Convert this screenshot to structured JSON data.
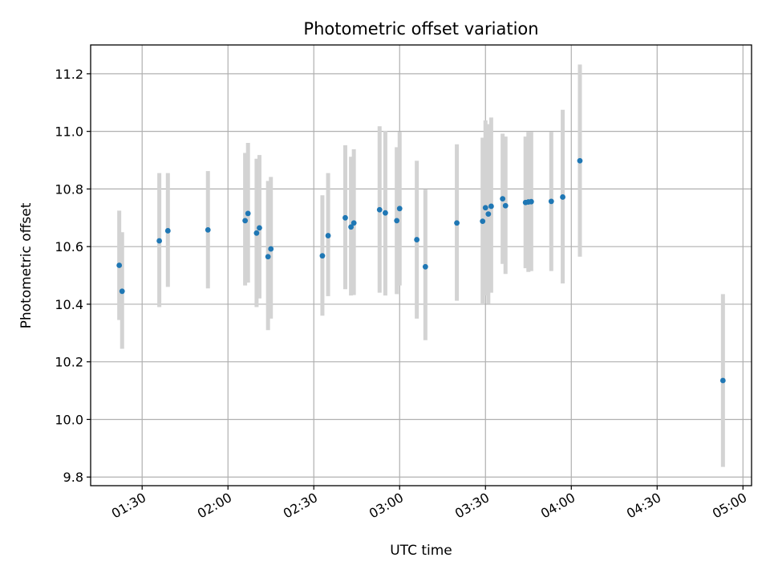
{
  "chart_data": {
    "type": "scatter",
    "title": "Photometric offset variation",
    "xlabel": "UTC time",
    "ylabel": "Photometric offset",
    "x_unit": "hh:mm UTC",
    "xlim": [
      "01:12",
      "05:03"
    ],
    "ylim": [
      9.77,
      11.3
    ],
    "grid": true,
    "x_ticks": [
      "01:30",
      "02:00",
      "02:30",
      "03:00",
      "03:30",
      "04:00",
      "04:30",
      "05:00"
    ],
    "y_ticks": [
      "9.8",
      "10.0",
      "10.2",
      "10.4",
      "10.6",
      "10.8",
      "11.0",
      "11.2"
    ],
    "series": [
      {
        "marker_color": "#1f77b4",
        "errorbar_color": "#d3d3d3",
        "points": [
          {
            "x": "01:22",
            "y": 10.535,
            "ylow": 10.345,
            "yhigh": 10.725
          },
          {
            "x": "01:23",
            "y": 10.445,
            "ylow": 10.245,
            "yhigh": 10.65
          },
          {
            "x": "01:36",
            "y": 10.62,
            "ylow": 10.39,
            "yhigh": 10.855
          },
          {
            "x": "01:39",
            "y": 10.655,
            "ylow": 10.46,
            "yhigh": 10.855
          },
          {
            "x": "01:53",
            "y": 10.658,
            "ylow": 10.455,
            "yhigh": 10.862
          },
          {
            "x": "02:06",
            "y": 10.69,
            "ylow": 10.465,
            "yhigh": 10.925
          },
          {
            "x": "02:07",
            "y": 10.715,
            "ylow": 10.475,
            "yhigh": 10.96
          },
          {
            "x": "02:10",
            "y": 10.647,
            "ylow": 10.39,
            "yhigh": 10.905
          },
          {
            "x": "02:11",
            "y": 10.665,
            "ylow": 10.42,
            "yhigh": 10.918
          },
          {
            "x": "02:14",
            "y": 10.565,
            "ylow": 10.31,
            "yhigh": 10.828
          },
          {
            "x": "02:15",
            "y": 10.592,
            "ylow": 10.35,
            "yhigh": 10.842
          },
          {
            "x": "02:33",
            "y": 10.568,
            "ylow": 10.36,
            "yhigh": 10.778
          },
          {
            "x": "02:35",
            "y": 10.638,
            "ylow": 10.428,
            "yhigh": 10.855
          },
          {
            "x": "02:41",
            "y": 10.7,
            "ylow": 10.452,
            "yhigh": 10.952
          },
          {
            "x": "02:43",
            "y": 10.668,
            "ylow": 10.43,
            "yhigh": 10.912
          },
          {
            "x": "02:44",
            "y": 10.682,
            "ylow": 10.432,
            "yhigh": 10.938
          },
          {
            "x": "02:53",
            "y": 10.728,
            "ylow": 10.44,
            "yhigh": 11.018
          },
          {
            "x": "02:55",
            "y": 10.717,
            "ylow": 10.43,
            "yhigh": 11.002
          },
          {
            "x": "02:59",
            "y": 10.69,
            "ylow": 10.435,
            "yhigh": 10.945
          },
          {
            "x": "03:00",
            "y": 10.732,
            "ylow": 10.465,
            "yhigh": 10.998
          },
          {
            "x": "03:06",
            "y": 10.624,
            "ylow": 10.35,
            "yhigh": 10.898
          },
          {
            "x": "03:09",
            "y": 10.53,
            "ylow": 10.275,
            "yhigh": 10.798
          },
          {
            "x": "03:20",
            "y": 10.682,
            "ylow": 10.412,
            "yhigh": 10.955
          },
          {
            "x": "03:29",
            "y": 10.688,
            "ylow": 10.4,
            "yhigh": 10.978
          },
          {
            "x": "03:30",
            "y": 10.735,
            "ylow": 10.43,
            "yhigh": 11.038
          },
          {
            "x": "03:31",
            "y": 10.713,
            "ylow": 10.402,
            "yhigh": 11.025
          },
          {
            "x": "03:32",
            "y": 10.74,
            "ylow": 10.44,
            "yhigh": 11.048
          },
          {
            "x": "03:36",
            "y": 10.766,
            "ylow": 10.54,
            "yhigh": 10.992
          },
          {
            "x": "03:37",
            "y": 10.742,
            "ylow": 10.505,
            "yhigh": 10.982
          },
          {
            "x": "03:44",
            "y": 10.753,
            "ylow": 10.525,
            "yhigh": 10.982
          },
          {
            "x": "03:45",
            "y": 10.755,
            "ylow": 10.512,
            "yhigh": 10.998
          },
          {
            "x": "03:46",
            "y": 10.756,
            "ylow": 10.515,
            "yhigh": 10.998
          },
          {
            "x": "03:53",
            "y": 10.757,
            "ylow": 10.515,
            "yhigh": 10.998
          },
          {
            "x": "03:57",
            "y": 10.772,
            "ylow": 10.472,
            "yhigh": 11.075
          },
          {
            "x": "04:03",
            "y": 10.898,
            "ylow": 10.565,
            "yhigh": 11.232
          },
          {
            "x": "04:53",
            "y": 10.135,
            "ylow": 9.835,
            "yhigh": 10.435
          }
        ]
      }
    ]
  }
}
